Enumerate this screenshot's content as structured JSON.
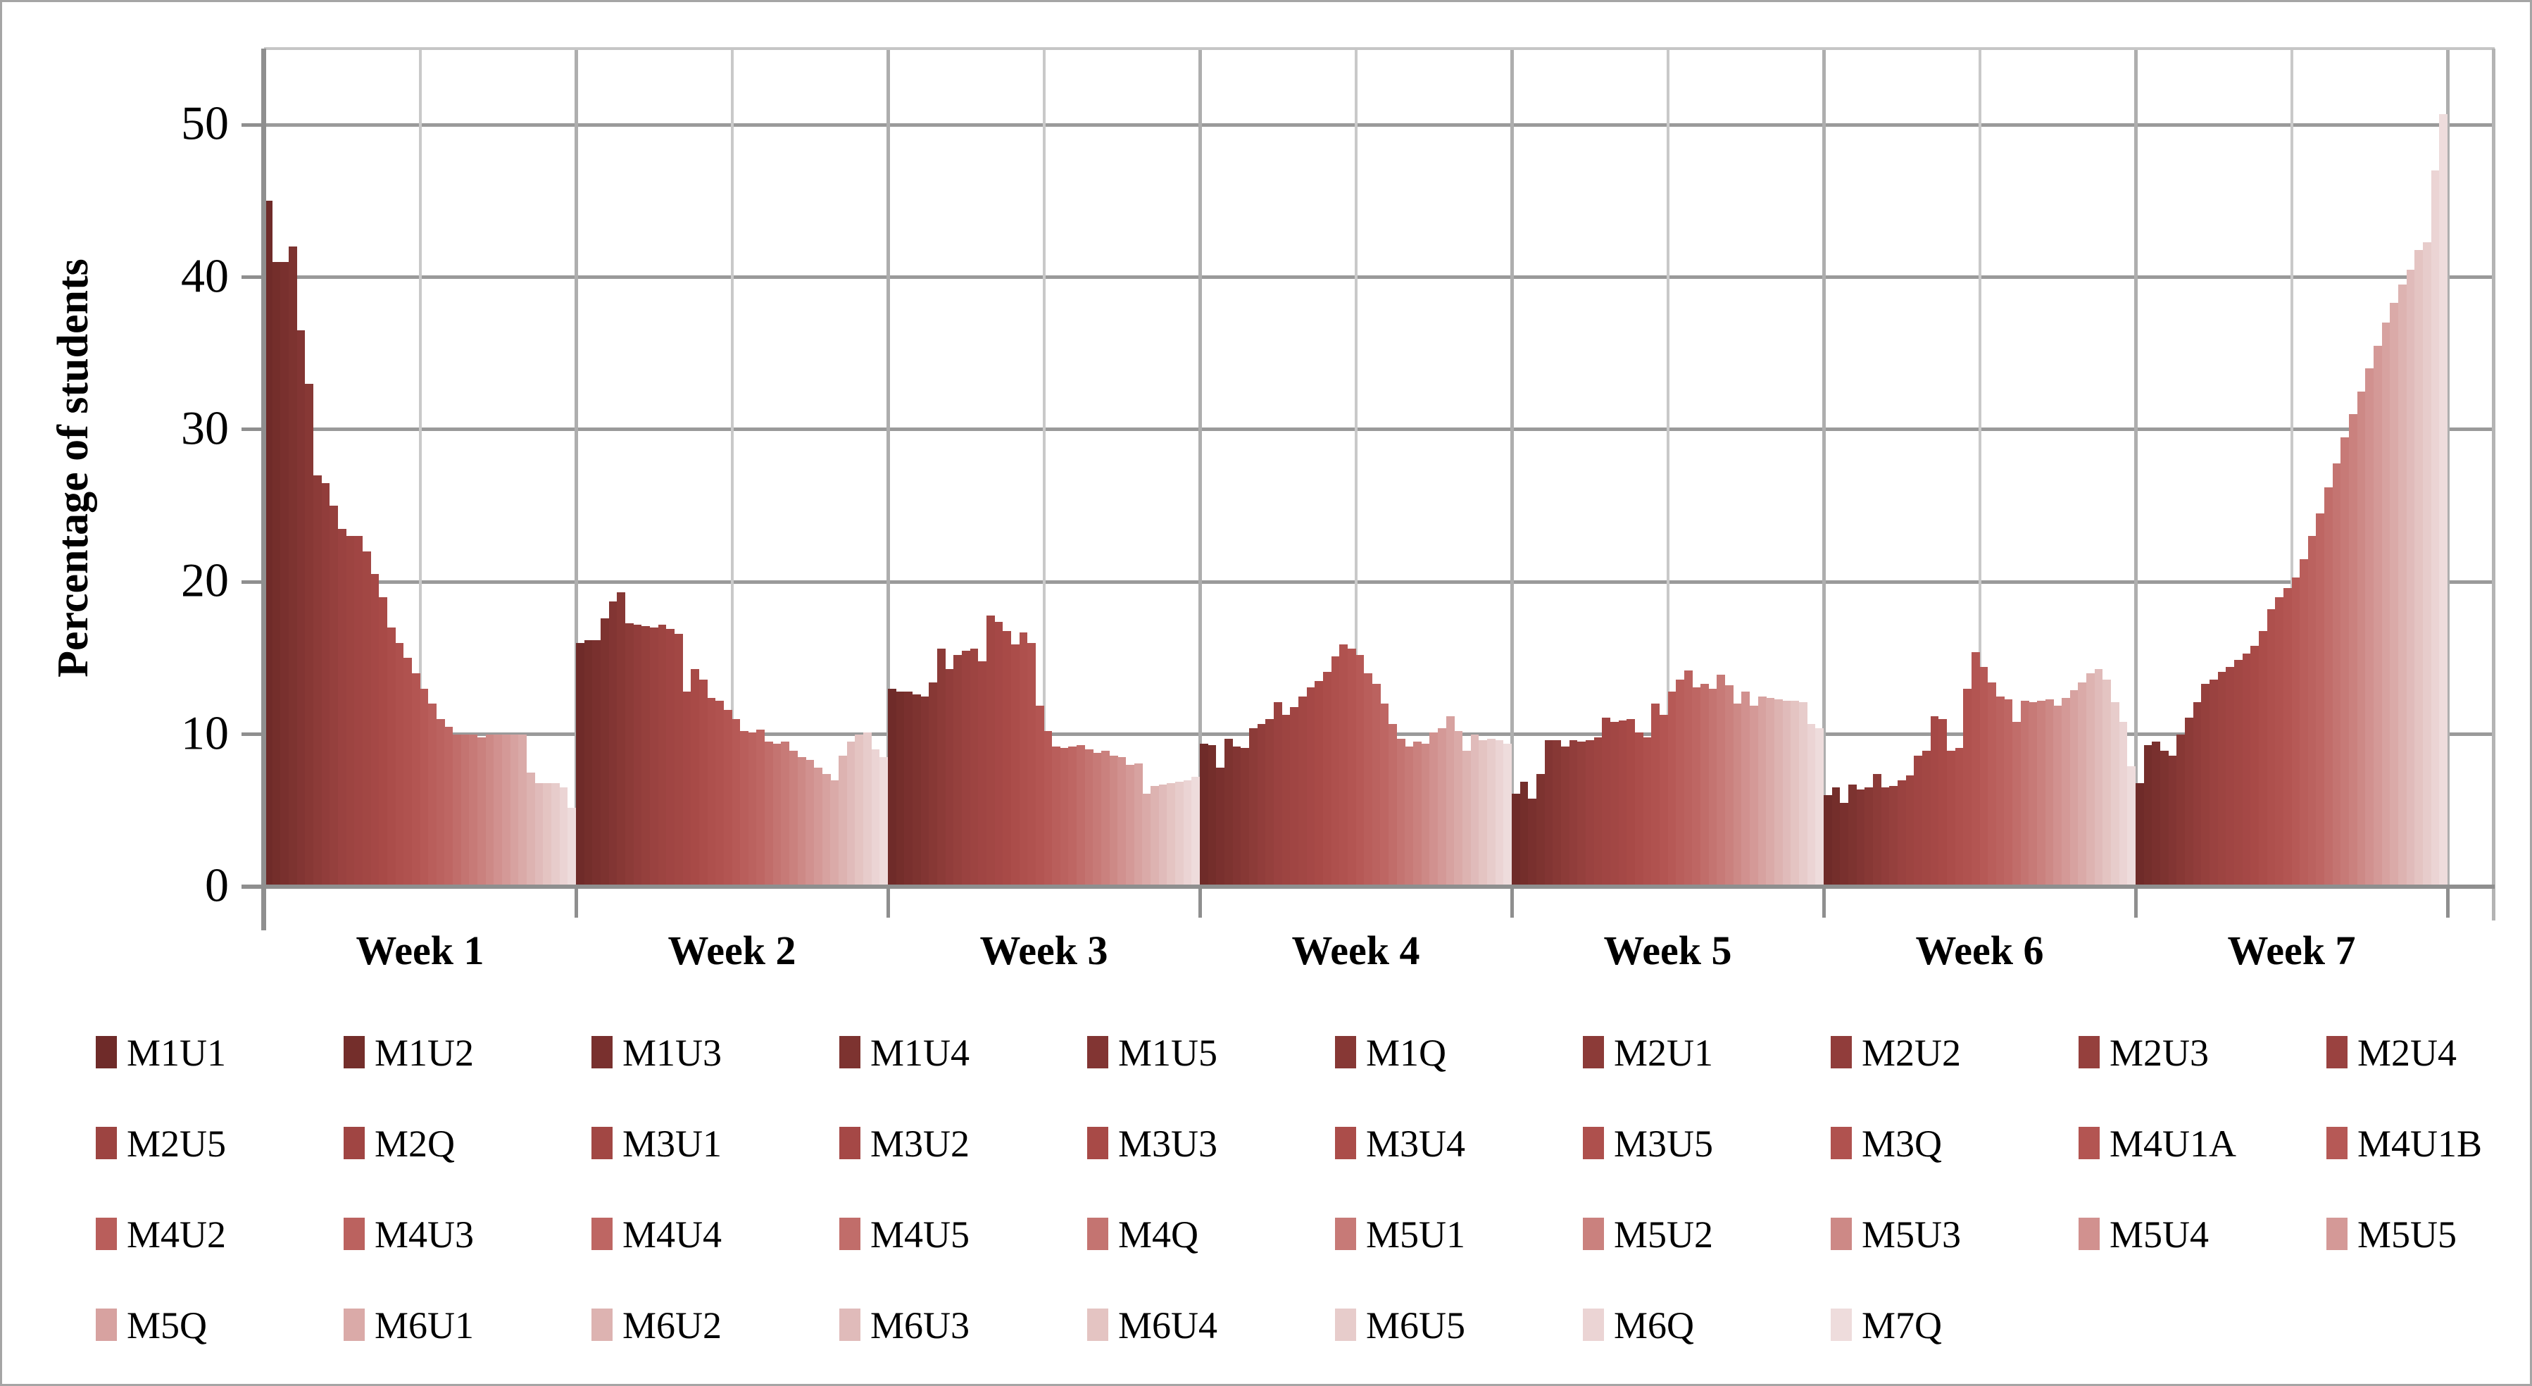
{
  "chart_data": {
    "type": "bar",
    "title": "",
    "xlabel": "",
    "ylabel": "Percentage of students",
    "ylim": [
      0,
      55
    ],
    "y_ticks": [
      0,
      10,
      20,
      30,
      40,
      50
    ],
    "grid": "major horizontal every 10, vertical at week boundaries and mid-week",
    "legend_position": "bottom",
    "categories": [
      "Week 1",
      "Week 2",
      "Week 3",
      "Week 4",
      "Week 5",
      "Week 6",
      "Week 7"
    ],
    "series": [
      {
        "name": "M1U1",
        "values": [
          45.0,
          16.0,
          13.0,
          9.4,
          6.1,
          6.0,
          6.8
        ]
      },
      {
        "name": "M1U2",
        "values": [
          41.0,
          16.2,
          12.8,
          9.3,
          6.9,
          6.5,
          9.3
        ]
      },
      {
        "name": "M1U3",
        "values": [
          41.0,
          16.2,
          12.8,
          7.8,
          5.8,
          5.5,
          9.5
        ]
      },
      {
        "name": "M1U4",
        "values": [
          42.0,
          17.6,
          12.6,
          9.7,
          7.4,
          6.7,
          8.9
        ]
      },
      {
        "name": "M1U5",
        "values": [
          36.5,
          18.7,
          12.5,
          9.2,
          9.6,
          6.4,
          8.6
        ]
      },
      {
        "name": "M1Q",
        "values": [
          33.0,
          19.3,
          13.4,
          9.1,
          9.6,
          6.5,
          10.0
        ]
      },
      {
        "name": "M2U1",
        "values": [
          27.0,
          17.3,
          15.6,
          10.4,
          9.2,
          7.4,
          11.1
        ]
      },
      {
        "name": "M2U2",
        "values": [
          26.5,
          17.2,
          14.3,
          10.7,
          9.6,
          6.5,
          12.1
        ]
      },
      {
        "name": "M2U3",
        "values": [
          25.0,
          17.1,
          15.2,
          11.0,
          9.5,
          6.6,
          13.3
        ]
      },
      {
        "name": "M2U4",
        "values": [
          23.5,
          17.0,
          15.5,
          12.1,
          9.6,
          7.0,
          13.6
        ]
      },
      {
        "name": "M2U5",
        "values": [
          23.0,
          17.2,
          15.6,
          11.3,
          9.8,
          7.3,
          14.1
        ]
      },
      {
        "name": "M2Q",
        "values": [
          23.0,
          16.9,
          14.8,
          11.8,
          11.1,
          8.6,
          14.4
        ]
      },
      {
        "name": "M3U1",
        "values": [
          22.0,
          16.6,
          17.8,
          12.5,
          10.8,
          8.9,
          14.9
        ]
      },
      {
        "name": "M3U2",
        "values": [
          20.5,
          12.8,
          17.4,
          13.1,
          10.9,
          11.2,
          15.3
        ]
      },
      {
        "name": "M3U3",
        "values": [
          19.0,
          14.3,
          16.8,
          13.5,
          11.0,
          11.0,
          15.8
        ]
      },
      {
        "name": "M3U4",
        "values": [
          17.0,
          13.6,
          15.9,
          14.1,
          10.1,
          8.9,
          16.8
        ]
      },
      {
        "name": "M3U5",
        "values": [
          16.0,
          12.4,
          16.7,
          15.1,
          9.8,
          9.1,
          18.2
        ]
      },
      {
        "name": "M3Q",
        "values": [
          15.0,
          12.2,
          16.0,
          15.9,
          12.0,
          13.0,
          19.0
        ]
      },
      {
        "name": "M4U1A",
        "values": [
          14.0,
          11.6,
          11.9,
          15.6,
          11.3,
          15.4,
          19.6
        ]
      },
      {
        "name": "M4U1B",
        "values": [
          13.0,
          11.0,
          10.2,
          15.2,
          12.8,
          14.4,
          20.3
        ]
      },
      {
        "name": "M4U2",
        "values": [
          12.0,
          10.2,
          9.2,
          14.0,
          13.6,
          13.4,
          21.5
        ]
      },
      {
        "name": "M4U3",
        "values": [
          11.0,
          10.1,
          9.1,
          13.3,
          14.2,
          12.5,
          23.0
        ]
      },
      {
        "name": "M4U4",
        "values": [
          10.5,
          10.3,
          9.2,
          12.0,
          13.1,
          12.3,
          24.5
        ]
      },
      {
        "name": "M4U5",
        "values": [
          10.0,
          9.5,
          9.3,
          10.7,
          13.3,
          10.8,
          26.2
        ]
      },
      {
        "name": "M4Q",
        "values": [
          10.0,
          9.4,
          9.0,
          9.7,
          13.0,
          12.2,
          27.8
        ]
      },
      {
        "name": "M5U1",
        "values": [
          10.0,
          9.5,
          8.8,
          9.2,
          13.9,
          12.1,
          29.5
        ]
      },
      {
        "name": "M5U2",
        "values": [
          9.8,
          8.9,
          8.9,
          9.5,
          13.2,
          12.2,
          31.0
        ]
      },
      {
        "name": "M5U3",
        "values": [
          10.0,
          8.5,
          8.6,
          9.4,
          12.0,
          12.3,
          32.5
        ]
      },
      {
        "name": "M5U4",
        "values": [
          10.0,
          8.3,
          8.5,
          10.1,
          12.8,
          11.9,
          34.0
        ]
      },
      {
        "name": "M5U5",
        "values": [
          10.0,
          7.8,
          8.0,
          10.4,
          11.9,
          12.4,
          35.5
        ]
      },
      {
        "name": "M5Q",
        "values": [
          10.0,
          7.4,
          8.1,
          11.2,
          12.5,
          12.9,
          37.0
        ]
      },
      {
        "name": "M6U1",
        "values": [
          10.0,
          7.0,
          6.1,
          10.2,
          12.4,
          13.4,
          38.3
        ]
      },
      {
        "name": "M6U2",
        "values": [
          7.5,
          8.6,
          6.6,
          8.9,
          12.3,
          14.0,
          39.5
        ]
      },
      {
        "name": "M6U3",
        "values": [
          6.8,
          9.5,
          6.7,
          10.0,
          12.2,
          14.3,
          40.5
        ]
      },
      {
        "name": "M6U4",
        "values": [
          6.8,
          10.0,
          6.8,
          9.6,
          12.2,
          13.6,
          41.8
        ]
      },
      {
        "name": "M6U5",
        "values": [
          6.8,
          10.1,
          6.9,
          9.7,
          12.1,
          12.1,
          42.3
        ]
      },
      {
        "name": "M6Q",
        "values": [
          6.5,
          9.0,
          7.0,
          9.6,
          10.7,
          10.8,
          47.0
        ]
      },
      {
        "name": "M7Q",
        "values": [
          5.2,
          8.5,
          7.2,
          9.4,
          10.4,
          7.9,
          50.7
        ]
      }
    ]
  },
  "legend": {
    "rows": [
      [
        "M1U1",
        "M1U2",
        "M1U3",
        "M1U4",
        "M1U5",
        "M1Q",
        "M2U1",
        "M2U2",
        "M2U3",
        "M2U4"
      ],
      [
        "M2U5",
        "M2Q",
        "M3U1",
        "M3U2",
        "M3U3",
        "M3U4",
        "M3U5",
        "M3Q",
        "M4U1A",
        "M4U1B"
      ],
      [
        "M4U2",
        "M4U3",
        "M4U4",
        "M4U5",
        "M4Q",
        "M5U1",
        "M5U2",
        "M5U3",
        "M5U4",
        "M5U5"
      ],
      [
        "M5Q",
        "M6U1",
        "M6U2",
        "M6U3",
        "M6U4",
        "M6U5",
        "M6Q",
        "M7Q"
      ]
    ]
  },
  "colors": {
    "gradient_anchors": [
      [
        0,
        "#6f2b29"
      ],
      [
        5,
        "#873835"
      ],
      [
        9,
        "#9a4240"
      ],
      [
        14,
        "#a84a47"
      ],
      [
        18,
        "#b35552"
      ],
      [
        22,
        "#be6663"
      ],
      [
        26,
        "#ca817e"
      ],
      [
        29,
        "#d49997"
      ],
      [
        32,
        "#ddb3b1"
      ],
      [
        35,
        "#e7cccb"
      ],
      [
        37,
        "#eedcdc"
      ]
    ],
    "axis_line": "#8f8f8f",
    "major_grid": "#9a9a9a",
    "minor_vgrid": "#c9c9c9",
    "text": "#000000"
  }
}
